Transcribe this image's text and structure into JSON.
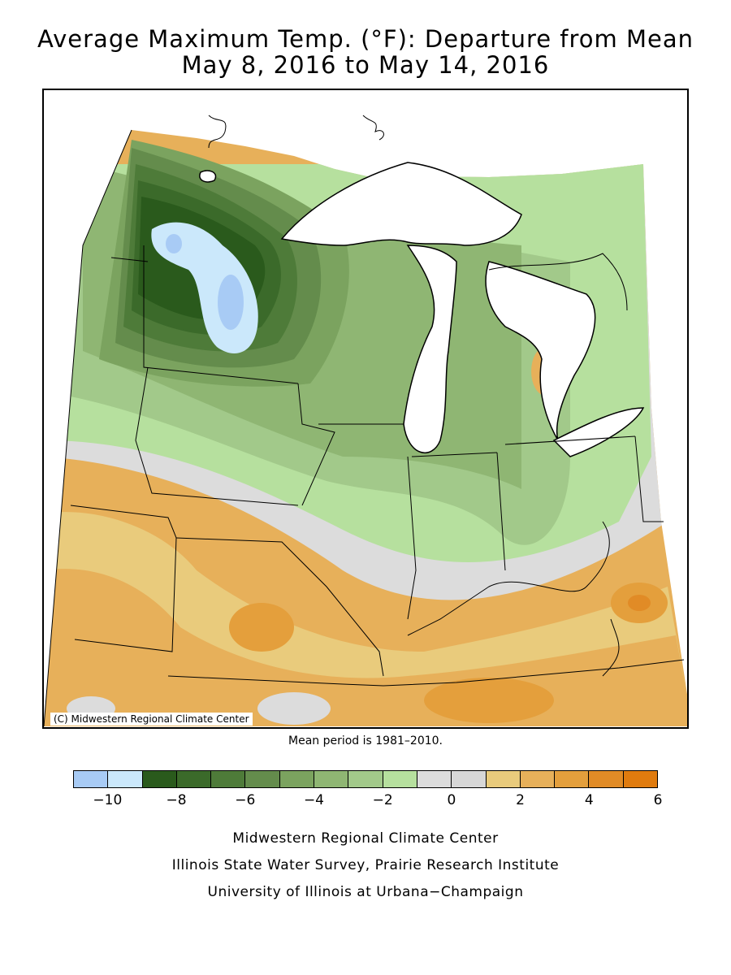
{
  "title": {
    "line1": "Average Maximum Temp. (°F): Departure from Mean",
    "line2": "May 8, 2016 to May 14, 2016"
  },
  "map": {
    "copyright": "(C) Midwestern Regional Climate Center",
    "mean_note": "Mean period is 1981–2010."
  },
  "legend": {
    "colors": [
      "#a8cbf5",
      "#cbe8fb",
      "#2a5a1c",
      "#3b6a2a",
      "#4e7b39",
      "#648c4c",
      "#7ba35f",
      "#8fb673",
      "#a2c98a",
      "#b6e09e",
      "#dcdcdc",
      "#d7d7d7",
      "#e9cb7c",
      "#e7b05a",
      "#e49f3c",
      "#e18b26",
      "#e07b0e"
    ],
    "ticks": [
      {
        "value": -10,
        "label": "−10"
      },
      {
        "value": -8,
        "label": "−8"
      },
      {
        "value": -6,
        "label": "−6"
      },
      {
        "value": -4,
        "label": "−4"
      },
      {
        "value": -2,
        "label": "−2"
      },
      {
        "value": 0,
        "label": "0"
      },
      {
        "value": 2,
        "label": "2"
      },
      {
        "value": 4,
        "label": "4"
      },
      {
        "value": 6,
        "label": "6"
      }
    ],
    "min": -11,
    "max": 6
  },
  "credits": {
    "line1": "Midwestern Regional Climate Center",
    "line2": "Illinois State Water Survey, Prairie Research Institute",
    "line3": "University of Illinois at Urbana−Champaign"
  }
}
